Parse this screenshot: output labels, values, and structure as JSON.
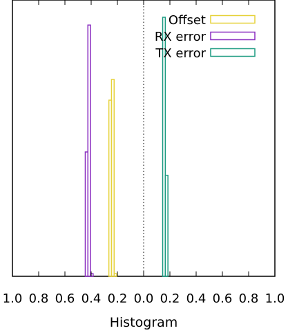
{
  "chart_data": {
    "type": "bar",
    "xlabel": "Histogram",
    "ylabel": "",
    "title": "",
    "xlim": [
      -1.0,
      1.0
    ],
    "ylim": [
      0,
      1.0
    ],
    "grid": false,
    "x_ticks": [
      -1.0,
      -0.8,
      -0.6,
      -0.4,
      -0.2,
      0.0,
      0.2,
      0.4,
      0.6,
      0.8,
      1.0
    ],
    "x_tick_labels": [
      "1.0",
      "0.8",
      "0.6",
      "0.4",
      "0.2",
      "0.0",
      "0.2",
      "0.4",
      "0.6",
      "0.8",
      "1.0"
    ],
    "zero_line": {
      "x": 0.0,
      "style": "dotted"
    },
    "legend": {
      "position": "top-right"
    },
    "series": [
      {
        "name": "Offset",
        "color": "#e6d23a",
        "bars": [
          {
            "x0": -0.265,
            "x1": -0.245,
            "y": 0.68
          },
          {
            "x0": -0.245,
            "x1": -0.225,
            "y": 0.76
          },
          {
            "x0": -0.225,
            "x1": -0.205,
            "y": 0.01
          }
        ]
      },
      {
        "name": "RX error",
        "color": "#8a2ec0",
        "bars": [
          {
            "x0": -0.445,
            "x1": -0.425,
            "y": 0.48
          },
          {
            "x0": -0.425,
            "x1": -0.405,
            "y": 0.97
          },
          {
            "x0": -0.405,
            "x1": -0.385,
            "y": 0.01
          }
        ]
      },
      {
        "name": "TX error",
        "color": "#1a9a80",
        "bars": [
          {
            "x0": 0.145,
            "x1": 0.165,
            "y": 1.0
          },
          {
            "x0": 0.165,
            "x1": 0.185,
            "y": 0.39
          }
        ]
      }
    ]
  }
}
